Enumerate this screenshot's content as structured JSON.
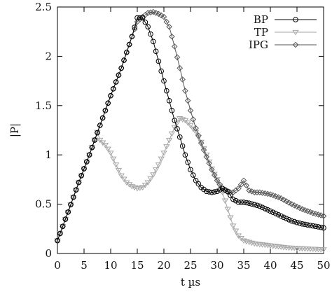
{
  "chart_data": {
    "type": "line",
    "title": "",
    "xlabel": "t µs",
    "ylabel": "|P|",
    "xlim": [
      0,
      50
    ],
    "ylim": [
      0,
      2.5
    ],
    "xticks": [
      0,
      5,
      10,
      15,
      20,
      25,
      30,
      35,
      40,
      45,
      50
    ],
    "yticks": [
      0,
      0.5,
      1,
      1.5,
      2,
      2.5
    ],
    "xtick_labels": [
      "0",
      "5",
      "10",
      "15",
      "20",
      "25",
      "30",
      "35",
      "40",
      "45",
      "50"
    ],
    "ytick_labels": [
      "0",
      "0.5",
      "1",
      "1.5",
      "2",
      "2.5"
    ],
    "grid": false,
    "legend_position": "top-right",
    "series": [
      {
        "name": "BP",
        "marker": "circle",
        "color": "#000000",
        "points": [
          [
            0,
            0.13
          ],
          [
            2,
            0.42
          ],
          [
            4,
            0.72
          ],
          [
            6,
            1.0
          ],
          [
            8,
            1.3
          ],
          [
            10,
            1.6
          ],
          [
            12,
            1.88
          ],
          [
            14,
            2.2
          ],
          [
            15,
            2.39
          ],
          [
            16,
            2.39
          ],
          [
            17,
            2.3
          ],
          [
            18,
            2.15
          ],
          [
            19,
            1.95
          ],
          [
            20,
            1.75
          ],
          [
            21,
            1.55
          ],
          [
            22,
            1.35
          ],
          [
            23,
            1.18
          ],
          [
            24,
            1.0
          ],
          [
            25,
            0.85
          ],
          [
            26,
            0.74
          ],
          [
            27,
            0.67
          ],
          [
            28,
            0.63
          ],
          [
            29,
            0.62
          ],
          [
            30,
            0.63
          ],
          [
            31,
            0.66
          ],
          [
            32,
            0.63
          ],
          [
            33,
            0.55
          ],
          [
            34,
            0.52
          ],
          [
            35,
            0.52
          ],
          [
            36,
            0.51
          ],
          [
            38,
            0.48
          ],
          [
            40,
            0.43
          ],
          [
            42,
            0.38
          ],
          [
            44,
            0.33
          ],
          [
            46,
            0.3
          ],
          [
            48,
            0.28
          ],
          [
            50,
            0.26
          ]
        ]
      },
      {
        "name": "TP",
        "marker": "triangle-down",
        "color": "#a6a6a6",
        "points": [
          [
            0,
            0.13
          ],
          [
            2,
            0.42
          ],
          [
            4,
            0.72
          ],
          [
            6,
            1.0
          ],
          [
            7.5,
            1.23
          ],
          [
            8,
            1.15
          ],
          [
            9,
            1.1
          ],
          [
            10,
            1.02
          ],
          [
            11,
            0.9
          ],
          [
            12,
            0.79
          ],
          [
            13,
            0.72
          ],
          [
            14,
            0.68
          ],
          [
            15,
            0.66
          ],
          [
            16,
            0.67
          ],
          [
            17,
            0.72
          ],
          [
            18,
            0.8
          ],
          [
            19,
            0.9
          ],
          [
            20,
            1.02
          ],
          [
            21,
            1.15
          ],
          [
            22,
            1.28
          ],
          [
            23,
            1.37
          ],
          [
            24,
            1.35
          ],
          [
            25,
            1.3
          ],
          [
            26,
            1.23
          ],
          [
            27,
            1.13
          ],
          [
            28,
            1.0
          ],
          [
            29,
            0.86
          ],
          [
            30,
            0.75
          ],
          [
            31,
            0.62
          ],
          [
            32,
            0.45
          ],
          [
            33,
            0.28
          ],
          [
            34,
            0.18
          ],
          [
            35,
            0.13
          ],
          [
            37,
            0.1
          ],
          [
            40,
            0.08
          ],
          [
            43,
            0.06
          ],
          [
            46,
            0.05
          ],
          [
            50,
            0.04
          ]
        ]
      },
      {
        "name": "IPG",
        "marker": "diamond",
        "color": "#555555",
        "points": [
          [
            0,
            0.13
          ],
          [
            2,
            0.42
          ],
          [
            4,
            0.72
          ],
          [
            6,
            1.0
          ],
          [
            8,
            1.3
          ],
          [
            10,
            1.6
          ],
          [
            12,
            1.88
          ],
          [
            14,
            2.2
          ],
          [
            15,
            2.35
          ],
          [
            16,
            2.4
          ],
          [
            17,
            2.44
          ],
          [
            18,
            2.45
          ],
          [
            19,
            2.43
          ],
          [
            20,
            2.4
          ],
          [
            21,
            2.3
          ],
          [
            22,
            2.1
          ],
          [
            23,
            1.88
          ],
          [
            24,
            1.65
          ],
          [
            25,
            1.45
          ],
          [
            26,
            1.27
          ],
          [
            27,
            1.12
          ],
          [
            28,
            0.98
          ],
          [
            29,
            0.85
          ],
          [
            30,
            0.74
          ],
          [
            31,
            0.66
          ],
          [
            32,
            0.62
          ],
          [
            33,
            0.62
          ],
          [
            34,
            0.66
          ],
          [
            35,
            0.74
          ],
          [
            36,
            0.64
          ],
          [
            37,
            0.62
          ],
          [
            38,
            0.62
          ],
          [
            40,
            0.6
          ],
          [
            42,
            0.56
          ],
          [
            44,
            0.5
          ],
          [
            46,
            0.45
          ],
          [
            48,
            0.41
          ],
          [
            50,
            0.38
          ]
        ]
      }
    ]
  }
}
